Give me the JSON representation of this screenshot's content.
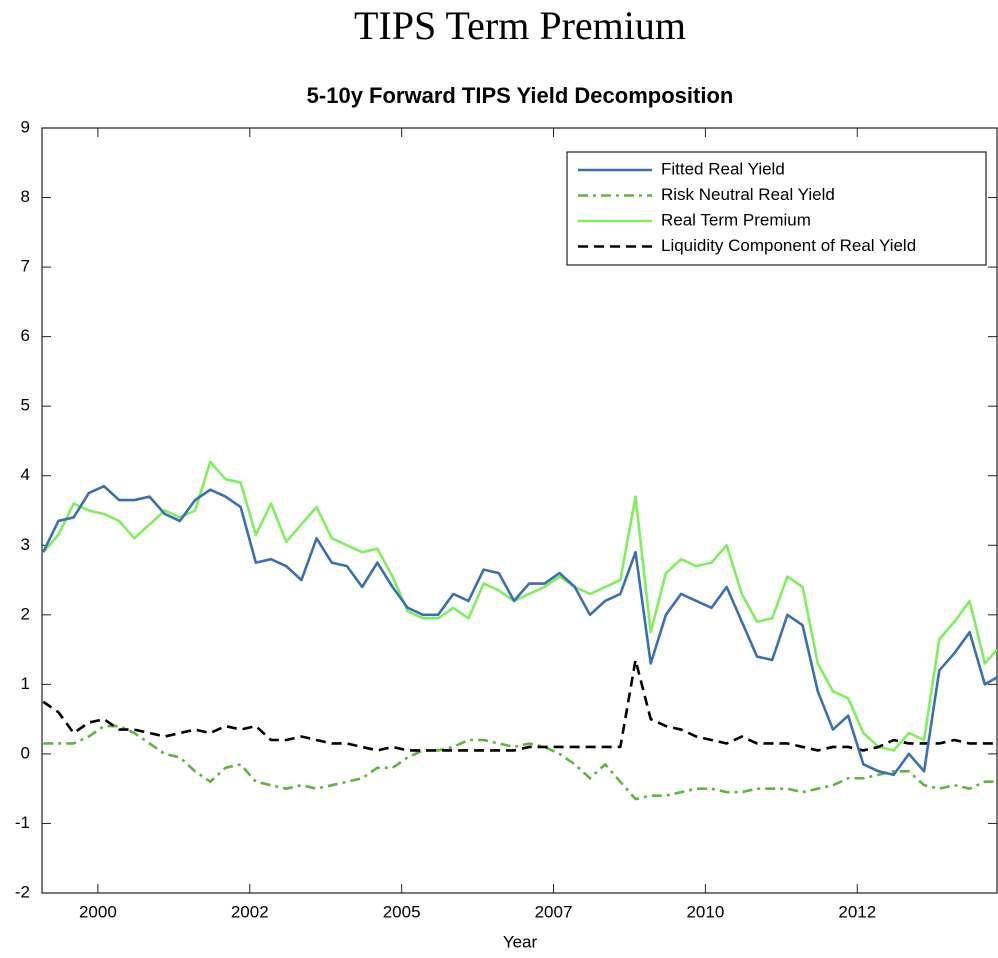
{
  "chart_data": {
    "type": "line",
    "title": "TIPS Term Premium",
    "subtitle": "5-10y Forward TIPS Yield Decomposition",
    "x_label": "Year",
    "xlim": [
      1999.08,
      2014.8
    ],
    "ylim": [
      -2,
      9
    ],
    "xticks": [
      2000,
      {
        "value": 2002.5,
        "label": "2002"
      },
      2005,
      {
        "value": 2007.5,
        "label": "2007"
      },
      2010,
      {
        "value": 2012.5,
        "label": "2012"
      }
    ],
    "yticks": [
      -2,
      -1,
      0,
      1,
      2,
      3,
      4,
      5,
      6,
      7,
      8,
      9
    ],
    "grid": false,
    "legend": "upper right",
    "x": [
      1999.1,
      1999.35,
      1999.6,
      1999.85,
      2000.1,
      2000.35,
      2000.6,
      2000.85,
      2001.1,
      2001.35,
      2001.6,
      2001.85,
      2002.1,
      2002.35,
      2002.6,
      2002.85,
      2003.1,
      2003.35,
      2003.6,
      2003.85,
      2004.1,
      2004.35,
      2004.6,
      2004.85,
      2005.1,
      2005.35,
      2005.6,
      2005.85,
      2006.1,
      2006.35,
      2006.6,
      2006.85,
      2007.1,
      2007.35,
      2007.6,
      2007.85,
      2008.1,
      2008.35,
      2008.6,
      2008.85,
      2009.1,
      2009.35,
      2009.6,
      2009.85,
      2010.1,
      2010.35,
      2010.6,
      2010.85,
      2011.1,
      2011.35,
      2011.6,
      2011.85,
      2012.1,
      2012.35,
      2012.6,
      2012.85,
      2013.1,
      2013.35,
      2013.6,
      2013.85,
      2014.1,
      2014.35,
      2014.6,
      2014.8
    ],
    "series": [
      {
        "name": "Fitted Real Yield",
        "color": "#3b6fb3",
        "linestyle": "solid",
        "values": [
          2.9,
          3.35,
          3.4,
          3.75,
          3.85,
          3.65,
          3.65,
          3.7,
          3.45,
          3.35,
          3.65,
          3.8,
          3.7,
          3.55,
          2.75,
          2.8,
          2.7,
          2.5,
          3.1,
          2.75,
          2.7,
          2.4,
          2.75,
          2.4,
          2.1,
          2.0,
          2.0,
          2.3,
          2.2,
          2.65,
          2.6,
          2.2,
          2.45,
          2.45,
          2.6,
          2.4,
          2.0,
          2.2,
          2.3,
          2.9,
          1.3,
          2.0,
          2.3,
          2.2,
          2.1,
          2.4,
          1.9,
          1.4,
          1.35,
          2.0,
          1.85,
          0.9,
          0.35,
          0.55,
          -0.15,
          -0.25,
          -0.3,
          0.0,
          -0.25,
          1.2,
          1.45,
          1.75,
          1.0,
          1.1
        ]
      },
      {
        "name": "Risk Neutral Real Yield",
        "color": "#5cb83c",
        "linestyle": "dashdot",
        "values": [
          0.15,
          0.15,
          0.15,
          0.25,
          0.4,
          0.4,
          0.3,
          0.15,
          0.0,
          -0.05,
          -0.25,
          -0.4,
          -0.2,
          -0.15,
          -0.4,
          -0.45,
          -0.5,
          -0.45,
          -0.5,
          -0.45,
          -0.4,
          -0.35,
          -0.2,
          -0.2,
          -0.05,
          0.05,
          0.05,
          0.1,
          0.2,
          0.2,
          0.15,
          0.1,
          0.15,
          0.1,
          0.0,
          -0.15,
          -0.35,
          -0.15,
          -0.4,
          -0.65,
          -0.6,
          -0.6,
          -0.55,
          -0.5,
          -0.5,
          -0.55,
          -0.55,
          -0.5,
          -0.5,
          -0.5,
          -0.55,
          -0.5,
          -0.45,
          -0.35,
          -0.35,
          -0.3,
          -0.25,
          -0.25,
          -0.45,
          -0.5,
          -0.45,
          -0.5,
          -0.4,
          -0.4
        ]
      },
      {
        "name": "Real Term Premium",
        "color": "#7ff05c",
        "linestyle": "solid",
        "values": [
          2.9,
          3.15,
          3.6,
          3.5,
          3.45,
          3.35,
          3.1,
          3.3,
          3.5,
          3.4,
          3.5,
          4.2,
          3.95,
          3.9,
          3.15,
          3.6,
          3.05,
          3.3,
          3.55,
          3.1,
          3.0,
          2.9,
          2.95,
          2.55,
          2.05,
          1.95,
          1.95,
          2.1,
          1.95,
          2.45,
          2.35,
          2.2,
          2.3,
          2.4,
          2.55,
          2.4,
          2.3,
          2.4,
          2.5,
          3.7,
          1.75,
          2.6,
          2.8,
          2.7,
          2.75,
          3.0,
          2.3,
          1.9,
          1.95,
          2.55,
          2.4,
          1.3,
          0.9,
          0.8,
          0.3,
          0.1,
          0.05,
          0.3,
          0.2,
          1.65,
          1.9,
          2.2,
          1.3,
          1.5
        ]
      },
      {
        "name": "Liquidity Component of Real Yield",
        "color": "#000000",
        "linestyle": "dashed",
        "values": [
          0.75,
          0.6,
          0.3,
          0.45,
          0.5,
          0.35,
          0.35,
          0.3,
          0.25,
          0.3,
          0.35,
          0.3,
          0.4,
          0.35,
          0.4,
          0.2,
          0.2,
          0.25,
          0.2,
          0.15,
          0.15,
          0.1,
          0.05,
          0.1,
          0.05,
          0.05,
          0.05,
          0.05,
          0.05,
          0.05,
          0.05,
          0.05,
          0.1,
          0.1,
          0.1,
          0.1,
          0.1,
          0.1,
          0.1,
          1.35,
          0.5,
          0.4,
          0.35,
          0.25,
          0.2,
          0.15,
          0.25,
          0.15,
          0.15,
          0.15,
          0.1,
          0.05,
          0.1,
          0.1,
          0.05,
          0.1,
          0.2,
          0.15,
          0.15,
          0.15,
          0.2,
          0.15,
          0.15,
          0.15
        ]
      }
    ]
  }
}
